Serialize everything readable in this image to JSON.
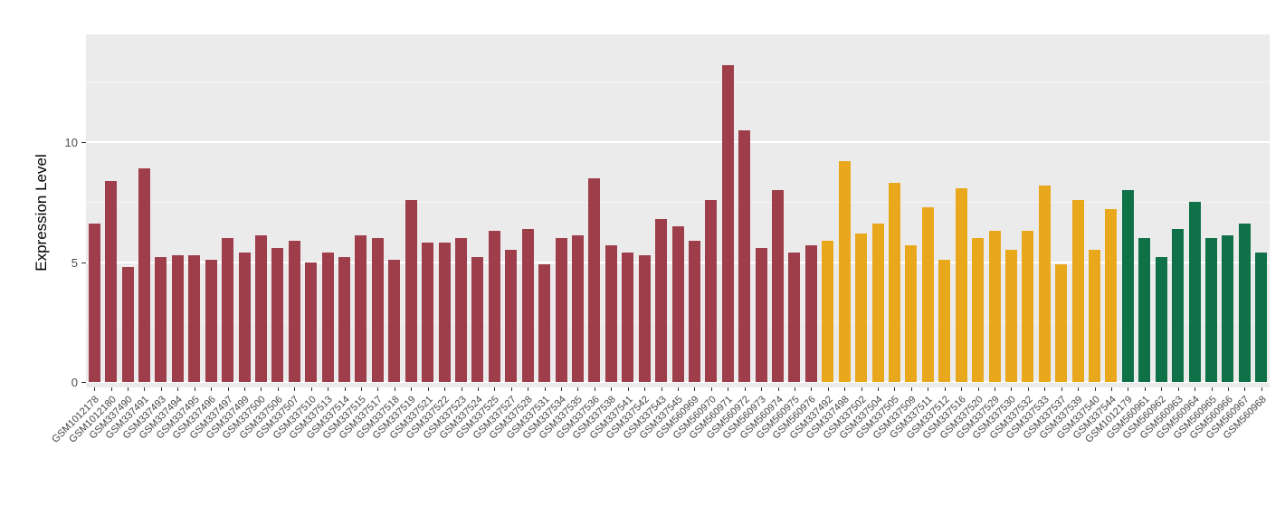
{
  "chart_data": {
    "type": "bar",
    "title": "",
    "ylabel": "Expression Level",
    "xlabel": "",
    "ylim": [
      0,
      14.35
    ],
    "yticks": [
      0,
      5,
      10
    ],
    "minor_gridlines": [
      2.5,
      7.5,
      12.5
    ],
    "panel_background": "#EBEBEB",
    "gridline_color": "#FFFFFF",
    "legend": "none",
    "group_colors": {
      "g1": "#9E3E4B",
      "g2": "#E9A81C",
      "g3": "#0E7148"
    },
    "bars": [
      {
        "label": "GSM1012178",
        "value": 6.6,
        "group": "g1"
      },
      {
        "label": "GSM1012180",
        "value": 8.4,
        "group": "g1"
      },
      {
        "label": "GSM337490",
        "value": 4.8,
        "group": "g1"
      },
      {
        "label": "GSM337491",
        "value": 8.9,
        "group": "g1"
      },
      {
        "label": "GSM337493",
        "value": 5.2,
        "group": "g1"
      },
      {
        "label": "GSM337494",
        "value": 5.3,
        "group": "g1"
      },
      {
        "label": "GSM337495",
        "value": 5.3,
        "group": "g1"
      },
      {
        "label": "GSM337496",
        "value": 5.1,
        "group": "g1"
      },
      {
        "label": "GSM337497",
        "value": 6.0,
        "group": "g1"
      },
      {
        "label": "GSM337499",
        "value": 5.4,
        "group": "g1"
      },
      {
        "label": "GSM337500",
        "value": 6.1,
        "group": "g1"
      },
      {
        "label": "GSM337506",
        "value": 5.6,
        "group": "g1"
      },
      {
        "label": "GSM337507",
        "value": 5.9,
        "group": "g1"
      },
      {
        "label": "GSM337510",
        "value": 5.0,
        "group": "g1"
      },
      {
        "label": "GSM337513",
        "value": 5.4,
        "group": "g1"
      },
      {
        "label": "GSM337514",
        "value": 5.2,
        "group": "g1"
      },
      {
        "label": "GSM337515",
        "value": 6.1,
        "group": "g1"
      },
      {
        "label": "GSM337517",
        "value": 6.0,
        "group": "g1"
      },
      {
        "label": "GSM337518",
        "value": 5.1,
        "group": "g1"
      },
      {
        "label": "GSM337519",
        "value": 7.6,
        "group": "g1"
      },
      {
        "label": "GSM337521",
        "value": 5.8,
        "group": "g1"
      },
      {
        "label": "GSM337522",
        "value": 5.8,
        "group": "g1"
      },
      {
        "label": "GSM337523",
        "value": 6.0,
        "group": "g1"
      },
      {
        "label": "GSM337524",
        "value": 5.2,
        "group": "g1"
      },
      {
        "label": "GSM337525",
        "value": 6.3,
        "group": "g1"
      },
      {
        "label": "GSM337527",
        "value": 5.5,
        "group": "g1"
      },
      {
        "label": "GSM337528",
        "value": 6.4,
        "group": "g1"
      },
      {
        "label": "GSM337531",
        "value": 4.9,
        "group": "g1"
      },
      {
        "label": "GSM337534",
        "value": 6.0,
        "group": "g1"
      },
      {
        "label": "GSM337535",
        "value": 6.1,
        "group": "g1"
      },
      {
        "label": "GSM337536",
        "value": 8.5,
        "group": "g1"
      },
      {
        "label": "GSM337538",
        "value": 5.7,
        "group": "g1"
      },
      {
        "label": "GSM337541",
        "value": 5.4,
        "group": "g1"
      },
      {
        "label": "GSM337542",
        "value": 5.3,
        "group": "g1"
      },
      {
        "label": "GSM337543",
        "value": 6.8,
        "group": "g1"
      },
      {
        "label": "GSM337545",
        "value": 6.5,
        "group": "g1"
      },
      {
        "label": "GSM560969",
        "value": 5.9,
        "group": "g1"
      },
      {
        "label": "GSM560970",
        "value": 7.6,
        "group": "g1"
      },
      {
        "label": "GSM560971",
        "value": 13.2,
        "group": "g1"
      },
      {
        "label": "GSM560972",
        "value": 10.5,
        "group": "g1"
      },
      {
        "label": "GSM560973",
        "value": 5.6,
        "group": "g1"
      },
      {
        "label": "GSM560974",
        "value": 8.0,
        "group": "g1"
      },
      {
        "label": "GSM560975",
        "value": 5.4,
        "group": "g1"
      },
      {
        "label": "GSM560976",
        "value": 5.7,
        "group": "g1"
      },
      {
        "label": "GSM337492",
        "value": 5.9,
        "group": "g2"
      },
      {
        "label": "GSM337498",
        "value": 9.2,
        "group": "g2"
      },
      {
        "label": "GSM337502",
        "value": 6.2,
        "group": "g2"
      },
      {
        "label": "GSM337504",
        "value": 6.6,
        "group": "g2"
      },
      {
        "label": "GSM337505",
        "value": 8.3,
        "group": "g2"
      },
      {
        "label": "GSM337509",
        "value": 5.7,
        "group": "g2"
      },
      {
        "label": "GSM337511",
        "value": 7.3,
        "group": "g2"
      },
      {
        "label": "GSM337512",
        "value": 5.1,
        "group": "g2"
      },
      {
        "label": "GSM337516",
        "value": 8.1,
        "group": "g2"
      },
      {
        "label": "GSM337520",
        "value": 6.0,
        "group": "g2"
      },
      {
        "label": "GSM337529",
        "value": 6.3,
        "group": "g2"
      },
      {
        "label": "GSM337530",
        "value": 5.5,
        "group": "g2"
      },
      {
        "label": "GSM337532",
        "value": 6.3,
        "group": "g2"
      },
      {
        "label": "GSM337533",
        "value": 8.2,
        "group": "g2"
      },
      {
        "label": "GSM337537",
        "value": 4.9,
        "group": "g2"
      },
      {
        "label": "GSM337539",
        "value": 7.6,
        "group": "g2"
      },
      {
        "label": "GSM337540",
        "value": 5.5,
        "group": "g2"
      },
      {
        "label": "GSM337544",
        "value": 7.2,
        "group": "g2"
      },
      {
        "label": "GSM1012179",
        "value": 8.0,
        "group": "g3"
      },
      {
        "label": "GSM560961",
        "value": 6.0,
        "group": "g3"
      },
      {
        "label": "GSM560962",
        "value": 5.2,
        "group": "g3"
      },
      {
        "label": "GSM560963",
        "value": 6.4,
        "group": "g3"
      },
      {
        "label": "GSM560964",
        "value": 7.5,
        "group": "g3"
      },
      {
        "label": "GSM560965",
        "value": 6.0,
        "group": "g3"
      },
      {
        "label": "GSM560966",
        "value": 6.1,
        "group": "g3"
      },
      {
        "label": "GSM560967",
        "value": 6.6,
        "group": "g3"
      },
      {
        "label": "GSM560968",
        "value": 5.4,
        "group": "g3"
      }
    ]
  }
}
